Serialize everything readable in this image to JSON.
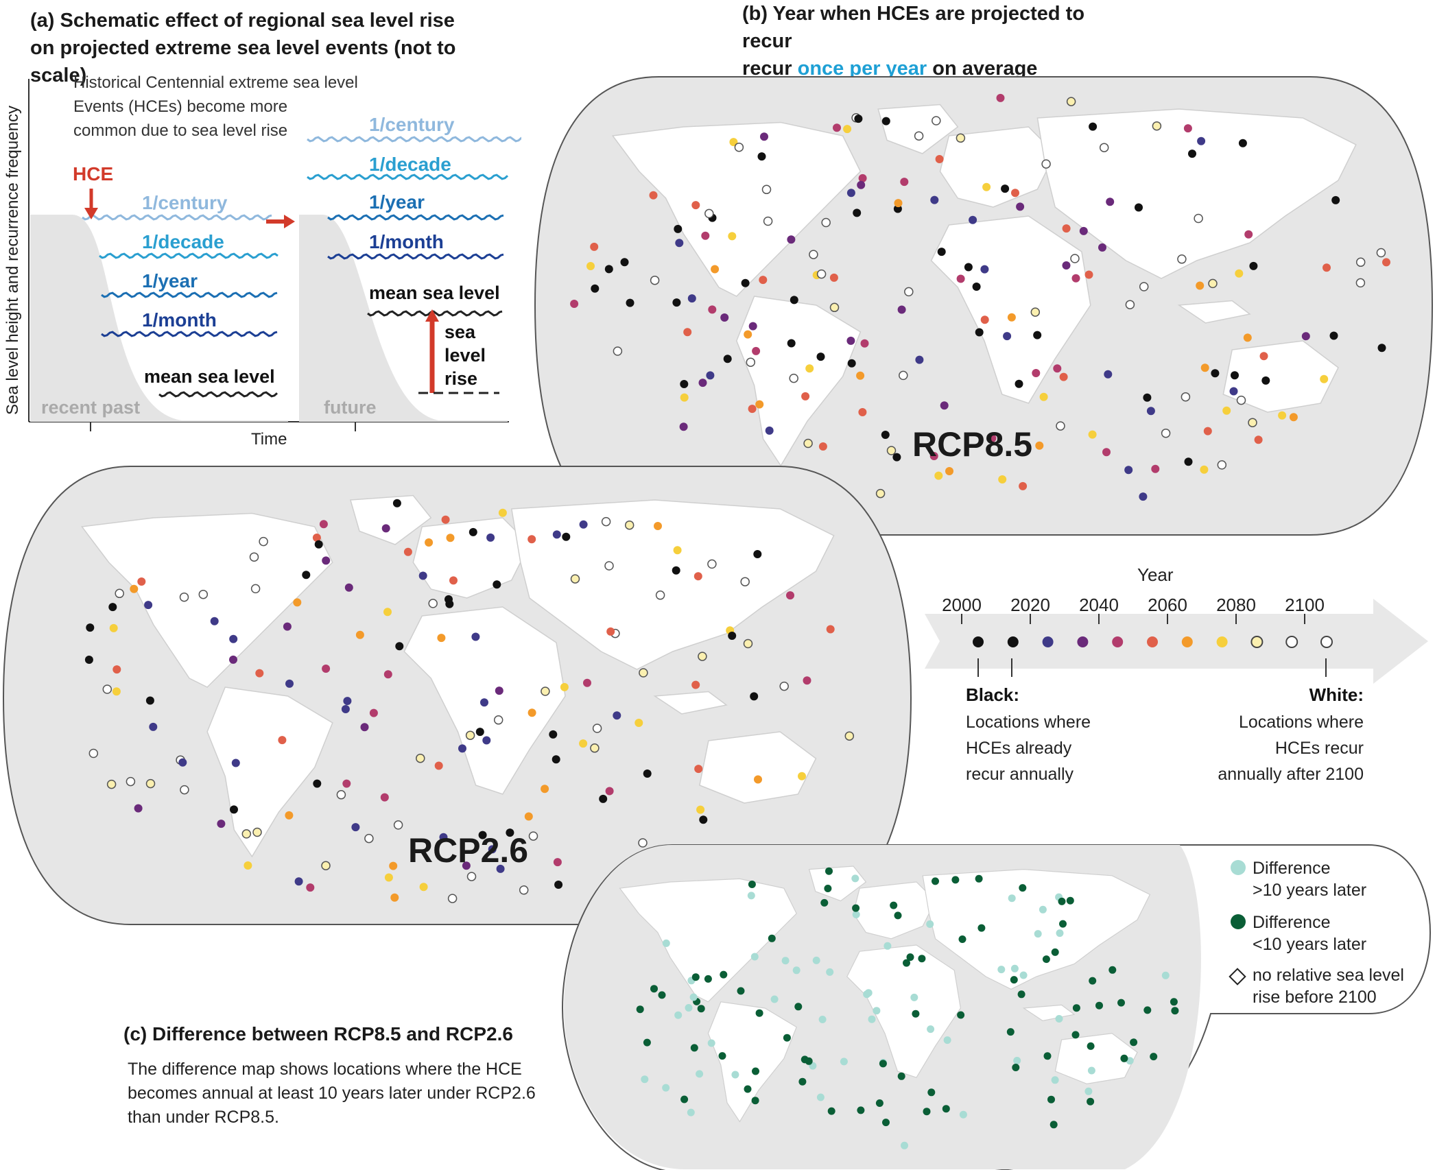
{
  "panel_a": {
    "title": "(a) Schematic effect of regional sea level rise on projected extreme sea level events (not to scale)",
    "description": "Historical Centennial extreme sea level Events (HCEs) become more common due to sea level rise",
    "y_axis_label": "Sea level height and recurrence frequency",
    "x_axis_label": "Time",
    "hce_label": "HCE",
    "past_levels": [
      "1/century",
      "1/decade",
      "1/year",
      "1/month"
    ],
    "future_levels": [
      "1/century",
      "1/decade",
      "1/year",
      "1/month"
    ],
    "mean_sea_level": "mean sea level",
    "sea_level_rise": "sea level rise",
    "recent_past": "recent past",
    "future": "future",
    "colors": {
      "century": "#8fb8dd",
      "decade": "#2a9fd0",
      "year": "#1b6fb3",
      "month": "#1c3f94",
      "arrow": "#d23a2a"
    }
  },
  "panel_b": {
    "title_part1": "(b) Year when HCEs are projected to recur",
    "title_highlight": "once per year",
    "title_part2": "on average",
    "highlight_color": "#1ea0d5"
  },
  "map_rcp85": {
    "label": "RCP8.5"
  },
  "map_rcp26": {
    "label": "RCP2.6"
  },
  "legend_year": {
    "title": "Year",
    "ticks": [
      "2000",
      "2020",
      "2040",
      "2060",
      "2080",
      "2100"
    ],
    "colors": [
      "#111111",
      "#111111",
      "#3f3a88",
      "#6a2a7a",
      "#b23c6c",
      "#e0604a",
      "#f39a2a",
      "#f6cf3c",
      "#fbf0b0",
      "#ffffff",
      "#ffffff"
    ],
    "black_title": "Black:",
    "black_text": "Locations where HCEs already recur annually",
    "white_title": "White:",
    "white_text": "Locations where HCEs recur annually after 2100"
  },
  "panel_c": {
    "title": "(c) Difference between RCP8.5 and RCP2.6",
    "description": "The difference map shows locations where the HCE becomes annual at least 10 years later under RCP2.6 than under RCP8.5.",
    "legend": [
      {
        "label": "Difference >10 years later",
        "color": "#a8dcd4"
      },
      {
        "label": "Difference <10 years later",
        "color": "#0a5e36"
      },
      {
        "label": "no relative sea level rise before 2100",
        "color": "#ffffff"
      }
    ]
  }
}
